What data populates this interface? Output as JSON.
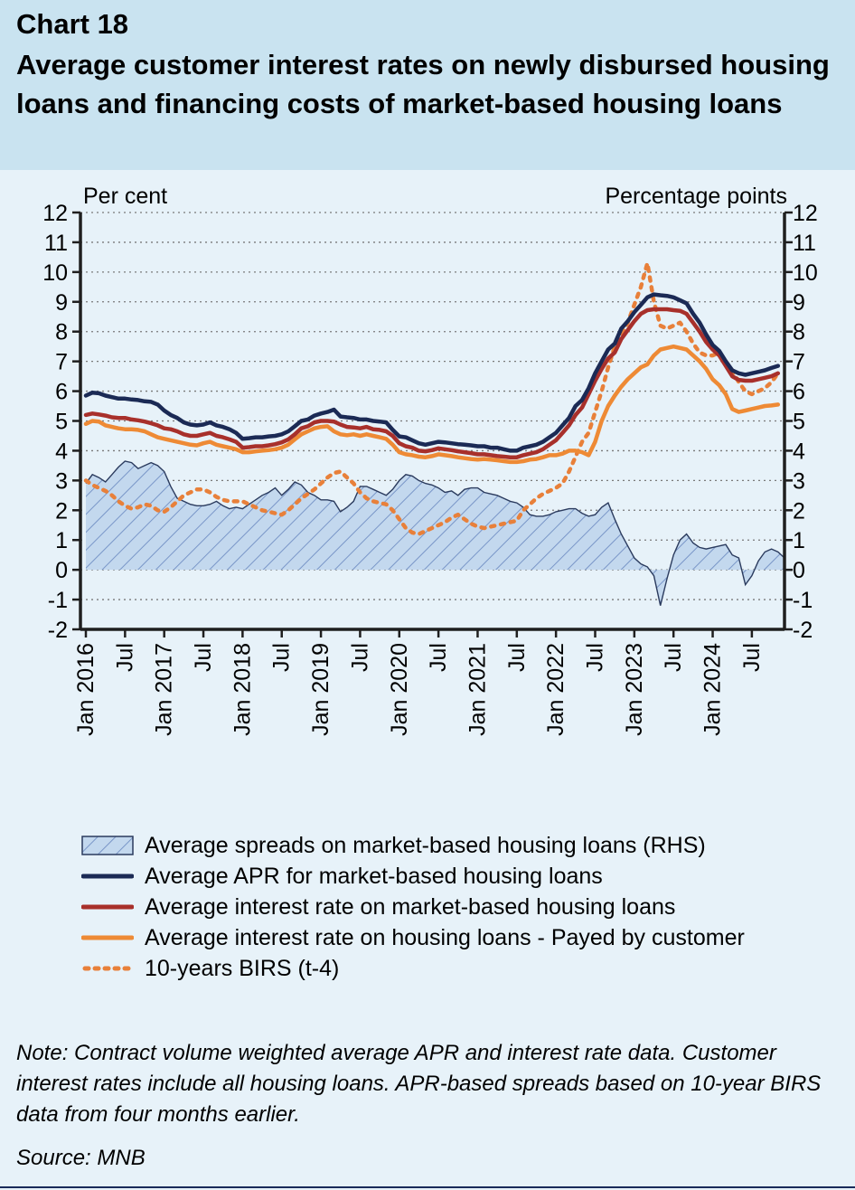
{
  "header": {
    "chart_number": "Chart 18",
    "title": "Average customer interest rates on newly disbursed housing loans and financing costs of market-based housing loans"
  },
  "note": "Note: Contract volume weighted average APR and interest rate data. Customer interest rates include all housing loans. APR-based spreads based on 10-year BIRS data from four months earlier.",
  "source": "Source: MNB",
  "colors": {
    "background": "#e7f2f9",
    "header_background": "#c9e3f0",
    "apr": "#1b2a55",
    "market_rate": "#a8302b",
    "customer_rate": "#ee8a35",
    "birs": "#e8803a",
    "spread_fill": "#c3d8ee",
    "spread_hatch": "#7996c8",
    "spread_outline": "#2b3b5e"
  },
  "chart_data": {
    "type": "line",
    "left_axis_label": "Per cent",
    "right_axis_label": "Percentage points",
    "ylim_left": [
      -2,
      12
    ],
    "ylim_right": [
      -2,
      12
    ],
    "yticks": [
      -2,
      -1,
      0,
      1,
      2,
      3,
      4,
      5,
      6,
      7,
      8,
      9,
      10,
      11,
      12
    ],
    "grid": "horizontal dotted",
    "x_start": "Jan 2016",
    "x_end": "Dec 2024",
    "x_tick_labels": [
      "Jan 2016",
      "Jul",
      "Jan 2017",
      "Jul",
      "Jan 2018",
      "Jul",
      "Jan 2019",
      "Jul",
      "Jan 2020",
      "Jul",
      "Jan 2021",
      "Jul",
      "Jan 2022",
      "Jul",
      "Jan 2023",
      "Jul",
      "Jan 2024",
      "Jul"
    ],
    "x_tick_months": [
      0,
      6,
      12,
      18,
      24,
      30,
      36,
      42,
      48,
      54,
      60,
      66,
      72,
      78,
      84,
      90,
      96,
      102
    ],
    "legend": [
      {
        "key": "spread",
        "label": "Average spreads on market-based housing loans (RHS)",
        "style": "hatched-area"
      },
      {
        "key": "apr",
        "label": "Average APR for market-based housing loans",
        "style": "solid"
      },
      {
        "key": "market",
        "label": "Average interest rate on market-based housing loans",
        "style": "solid"
      },
      {
        "key": "customer",
        "label": "Average interest rate on housing loans - Payed by customer",
        "style": "solid"
      },
      {
        "key": "birs",
        "label": "10-years BIRS (t-4)",
        "style": "dotted"
      }
    ],
    "series": [
      {
        "key": "apr",
        "name": "Average APR for market-based housing loans",
        "axis": "left",
        "values": [
          5.85,
          5.95,
          5.93,
          5.85,
          5.8,
          5.75,
          5.75,
          5.72,
          5.7,
          5.66,
          5.64,
          5.55,
          5.35,
          5.2,
          5.1,
          4.95,
          4.88,
          4.85,
          4.88,
          4.95,
          4.85,
          4.8,
          4.72,
          4.6,
          4.4,
          4.42,
          4.45,
          4.45,
          4.48,
          4.5,
          4.55,
          4.65,
          4.82,
          5.0,
          5.05,
          5.18,
          5.25,
          5.3,
          5.38,
          5.15,
          5.12,
          5.1,
          5.05,
          5.05,
          5.0,
          4.98,
          4.95,
          4.7,
          4.48,
          4.45,
          4.35,
          4.25,
          4.2,
          4.25,
          4.3,
          4.28,
          4.25,
          4.22,
          4.2,
          4.18,
          4.15,
          4.15,
          4.1,
          4.1,
          4.05,
          4.0,
          4.0,
          4.1,
          4.15,
          4.2,
          4.3,
          4.45,
          4.6,
          4.85,
          5.1,
          5.5,
          5.7,
          6.1,
          6.6,
          7.0,
          7.4,
          7.6,
          8.1,
          8.35,
          8.65,
          8.9,
          9.15,
          9.25,
          9.22,
          9.2,
          9.15,
          9.05,
          8.95,
          8.6,
          8.3,
          7.9,
          7.55,
          7.35,
          7.0,
          6.7,
          6.6,
          6.55,
          6.6,
          6.65,
          6.7,
          6.78,
          6.85
        ]
      },
      {
        "key": "market",
        "name": "Average interest rate on market-based housing loans",
        "axis": "left",
        "values": [
          5.2,
          5.25,
          5.22,
          5.18,
          5.12,
          5.1,
          5.1,
          5.05,
          5.02,
          4.98,
          4.92,
          4.85,
          4.75,
          4.72,
          4.65,
          4.55,
          4.5,
          4.5,
          4.55,
          4.6,
          4.5,
          4.45,
          4.38,
          4.3,
          4.1,
          4.12,
          4.15,
          4.15,
          4.18,
          4.22,
          4.28,
          4.38,
          4.55,
          4.75,
          4.82,
          4.95,
          5.0,
          5.0,
          4.98,
          4.88,
          4.8,
          4.78,
          4.75,
          4.8,
          4.72,
          4.7,
          4.65,
          4.5,
          4.25,
          4.15,
          4.1,
          4.0,
          3.98,
          4.02,
          4.08,
          4.05,
          4.02,
          3.98,
          3.95,
          3.92,
          3.88,
          3.88,
          3.85,
          3.82,
          3.8,
          3.78,
          3.78,
          3.85,
          3.9,
          3.95,
          4.05,
          4.2,
          4.35,
          4.6,
          4.85,
          5.2,
          5.45,
          5.9,
          6.35,
          6.75,
          7.1,
          7.3,
          7.75,
          8.05,
          8.35,
          8.6,
          8.72,
          8.75,
          8.75,
          8.75,
          8.72,
          8.7,
          8.6,
          8.3,
          8.0,
          7.65,
          7.4,
          7.2,
          6.85,
          6.5,
          6.38,
          6.35,
          6.35,
          6.4,
          6.45,
          6.5,
          6.6
        ]
      },
      {
        "key": "customer",
        "name": "Average interest rate on housing loans - Payed by customer",
        "axis": "left",
        "values": [
          4.9,
          5.0,
          4.98,
          4.85,
          4.8,
          4.75,
          4.72,
          4.72,
          4.7,
          4.65,
          4.55,
          4.45,
          4.4,
          4.35,
          4.3,
          4.25,
          4.2,
          4.18,
          4.25,
          4.3,
          4.2,
          4.15,
          4.1,
          4.05,
          3.95,
          3.95,
          3.98,
          4.0,
          4.02,
          4.05,
          4.1,
          4.2,
          4.38,
          4.55,
          4.65,
          4.75,
          4.8,
          4.82,
          4.65,
          4.55,
          4.52,
          4.55,
          4.5,
          4.55,
          4.5,
          4.45,
          4.4,
          4.2,
          3.95,
          3.88,
          3.85,
          3.8,
          3.78,
          3.82,
          3.88,
          3.85,
          3.82,
          3.78,
          3.75,
          3.72,
          3.7,
          3.72,
          3.7,
          3.68,
          3.65,
          3.62,
          3.62,
          3.65,
          3.7,
          3.72,
          3.78,
          3.85,
          3.85,
          3.9,
          4.0,
          4.0,
          3.95,
          3.85,
          4.3,
          5.0,
          5.5,
          5.85,
          6.15,
          6.4,
          6.6,
          6.8,
          6.9,
          7.2,
          7.4,
          7.45,
          7.5,
          7.45,
          7.4,
          7.2,
          7.0,
          6.75,
          6.4,
          6.2,
          5.9,
          5.4,
          5.3,
          5.35,
          5.4,
          5.45,
          5.5,
          5.52,
          5.55
        ]
      },
      {
        "key": "birs",
        "name": "10-years BIRS (t-4)",
        "axis": "left",
        "values": [
          3.0,
          2.85,
          2.75,
          2.65,
          2.5,
          2.3,
          2.15,
          2.05,
          2.1,
          2.2,
          2.15,
          2.0,
          1.95,
          2.1,
          2.3,
          2.5,
          2.6,
          2.7,
          2.7,
          2.6,
          2.45,
          2.35,
          2.3,
          2.3,
          2.3,
          2.2,
          2.1,
          2.0,
          1.95,
          1.9,
          1.85,
          2.0,
          2.2,
          2.4,
          2.55,
          2.7,
          2.9,
          3.1,
          3.25,
          3.3,
          3.1,
          2.9,
          2.6,
          2.4,
          2.3,
          2.25,
          2.2,
          2.0,
          1.7,
          1.4,
          1.25,
          1.2,
          1.3,
          1.4,
          1.5,
          1.6,
          1.75,
          1.85,
          1.7,
          1.55,
          1.45,
          1.4,
          1.45,
          1.5,
          1.55,
          1.6,
          1.65,
          2.0,
          2.2,
          2.4,
          2.55,
          2.65,
          2.75,
          2.9,
          3.3,
          3.8,
          4.3,
          4.6,
          5.3,
          6.0,
          6.8,
          7.5,
          7.9,
          8.3,
          8.9,
          9.5,
          10.3,
          9.0,
          8.2,
          8.1,
          8.2,
          8.3,
          8.0,
          7.6,
          7.3,
          7.2,
          7.2,
          7.3,
          7.0,
          6.7,
          6.3,
          6.0,
          5.9,
          6.0,
          6.1,
          6.3,
          6.6
        ]
      },
      {
        "key": "spread",
        "name": "Average spreads on market-based housing loans (RHS)",
        "axis": "right",
        "values": [
          2.9,
          3.2,
          3.1,
          2.95,
          3.2,
          3.45,
          3.65,
          3.6,
          3.4,
          3.5,
          3.6,
          3.5,
          3.3,
          2.8,
          2.4,
          2.3,
          2.2,
          2.15,
          2.15,
          2.2,
          2.3,
          2.15,
          2.05,
          2.1,
          2.05,
          2.2,
          2.35,
          2.5,
          2.6,
          2.75,
          2.5,
          2.7,
          2.95,
          2.85,
          2.6,
          2.5,
          2.35,
          2.35,
          2.3,
          1.95,
          2.1,
          2.3,
          2.8,
          2.8,
          2.7,
          2.6,
          2.5,
          2.7,
          3.0,
          3.2,
          3.15,
          3.0,
          2.9,
          2.85,
          2.75,
          2.6,
          2.65,
          2.5,
          2.7,
          2.75,
          2.75,
          2.6,
          2.55,
          2.5,
          2.4,
          2.3,
          2.25,
          2.1,
          1.85,
          1.8,
          1.8,
          1.85,
          1.95,
          2.0,
          2.05,
          2.05,
          1.9,
          1.8,
          1.85,
          2.1,
          2.25,
          1.7,
          1.2,
          0.8,
          0.4,
          0.2,
          0.1,
          -0.2,
          -1.2,
          -0.3,
          0.5,
          1.0,
          1.2,
          0.9,
          0.75,
          0.7,
          0.75,
          0.8,
          0.85,
          0.5,
          0.4,
          -0.5,
          -0.2,
          0.3,
          0.6,
          0.7,
          0.6,
          0.4
        ]
      }
    ]
  }
}
